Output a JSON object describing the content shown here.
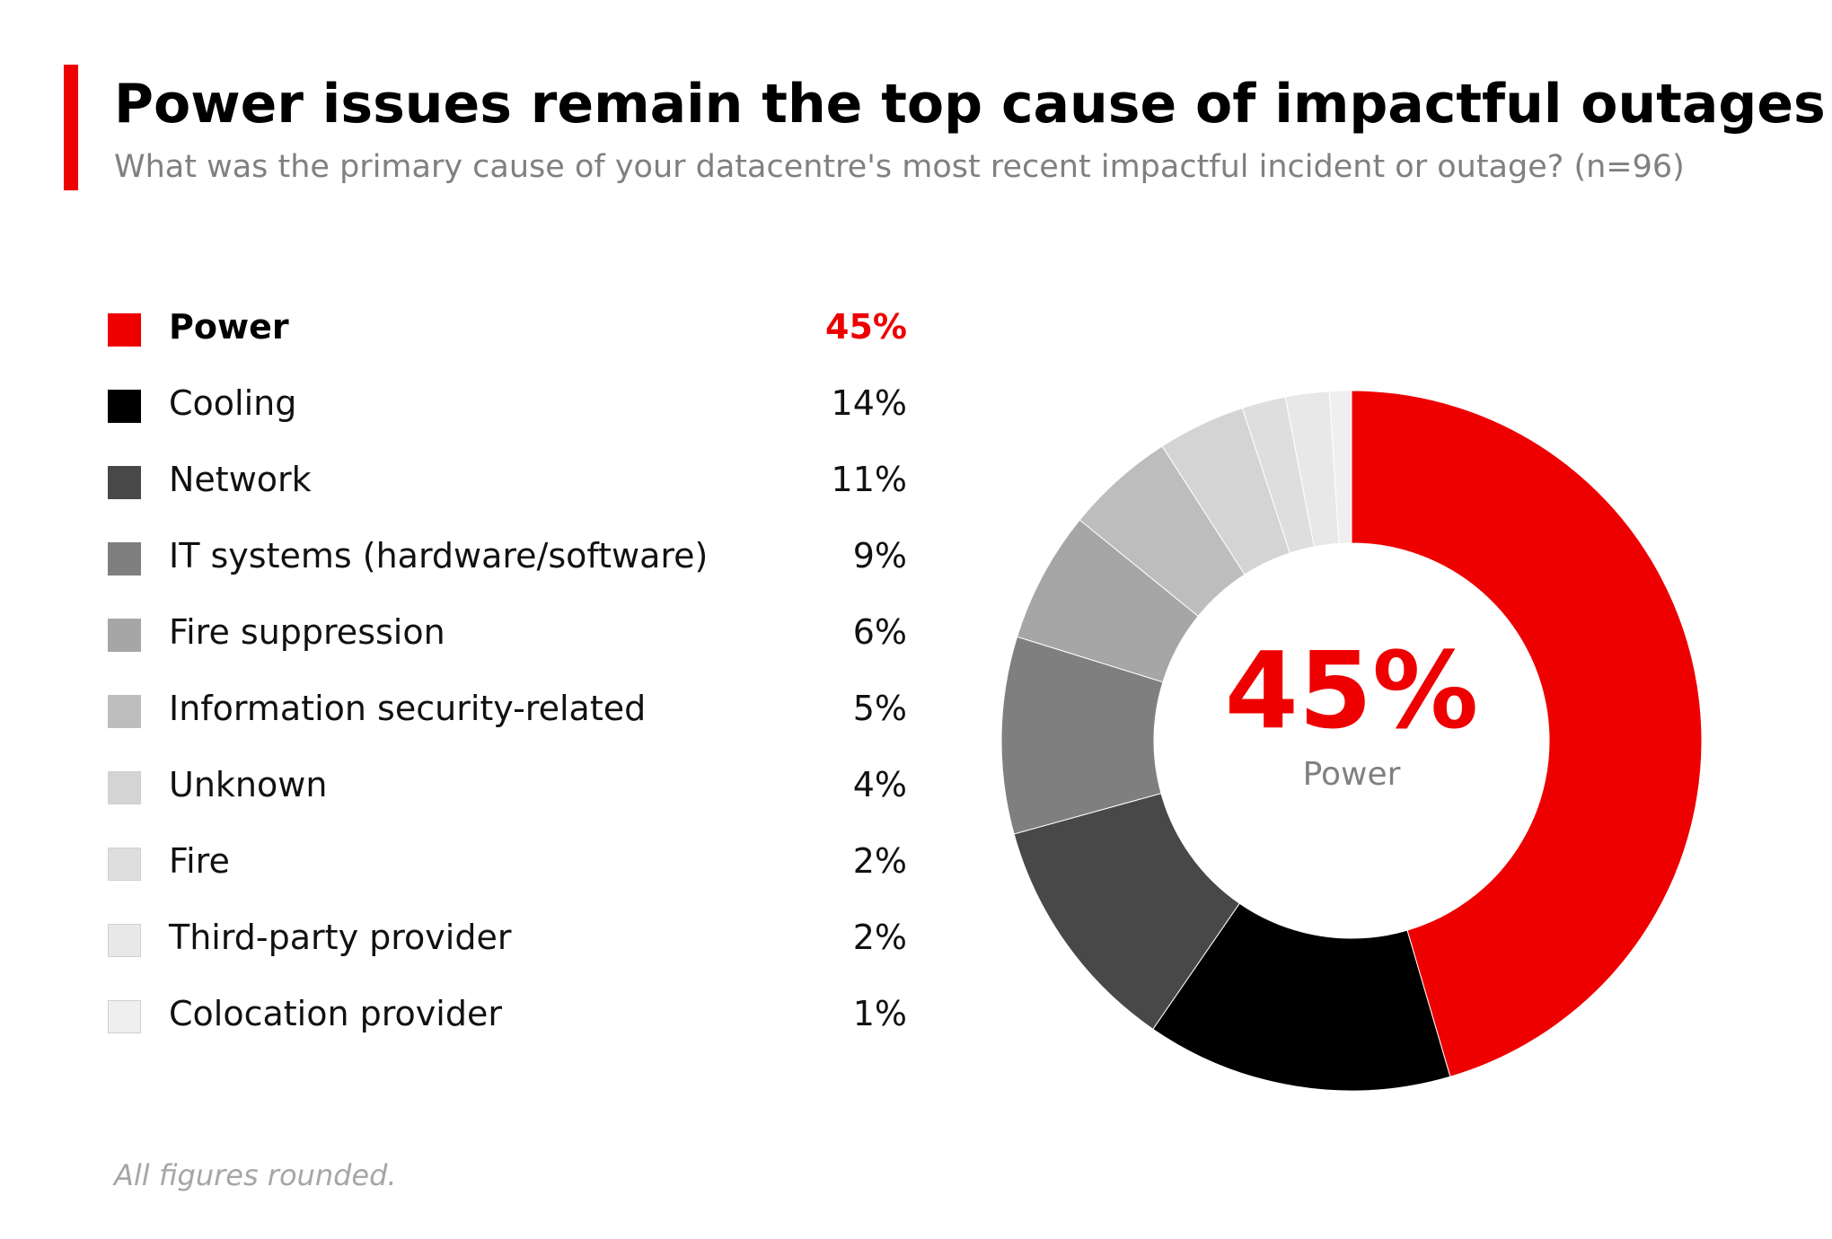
{
  "title": "Power issues remain the top cause of impactful outages",
  "subtitle": "What was the primary cause of your datacentre's most recent impactful incident or outage? (n=96)",
  "footnote": "All figures rounded.",
  "accent_color": "#ee0000",
  "center": {
    "value": "45%",
    "label": "Power"
  },
  "legend": [
    {
      "label": "Power",
      "value": "45%"
    },
    {
      "label": "Cooling",
      "value": "14%"
    },
    {
      "label": "Network",
      "value": "11%"
    },
    {
      "label": "IT systems (hardware/software)",
      "value": "9%"
    },
    {
      "label": "Fire suppression",
      "value": "6%"
    },
    {
      "label": "Information security-related",
      "value": "5%"
    },
    {
      "label": "Unknown",
      "value": "4%"
    },
    {
      "label": "Fire",
      "value": "2%"
    },
    {
      "label": "Third-party provider",
      "value": "2%"
    },
    {
      "label": "Colocation provider",
      "value": "1%"
    }
  ],
  "chart_data": {
    "type": "pie",
    "variant": "donut",
    "title": "Power issues remain the top cause of impactful outages",
    "subtitle": "What was the primary cause of your datacentre's most recent impactful incident or outage? (n=96)",
    "unit": "%",
    "categories": [
      "Power",
      "Cooling",
      "Network",
      "IT systems (hardware/software)",
      "Fire suppression",
      "Information security-related",
      "Unknown",
      "Fire",
      "Third-party provider",
      "Colocation provider"
    ],
    "values": [
      45,
      14,
      11,
      9,
      6,
      5,
      4,
      2,
      2,
      1
    ],
    "colors": [
      "#ee0000",
      "#000000",
      "#484848",
      "#7f7f7f",
      "#a6a6a6",
      "#bdbdbd",
      "#d4d4d4",
      "#dedede",
      "#e8e8e8",
      "#efefef"
    ],
    "highlight": "Power",
    "legend_position": "left"
  }
}
